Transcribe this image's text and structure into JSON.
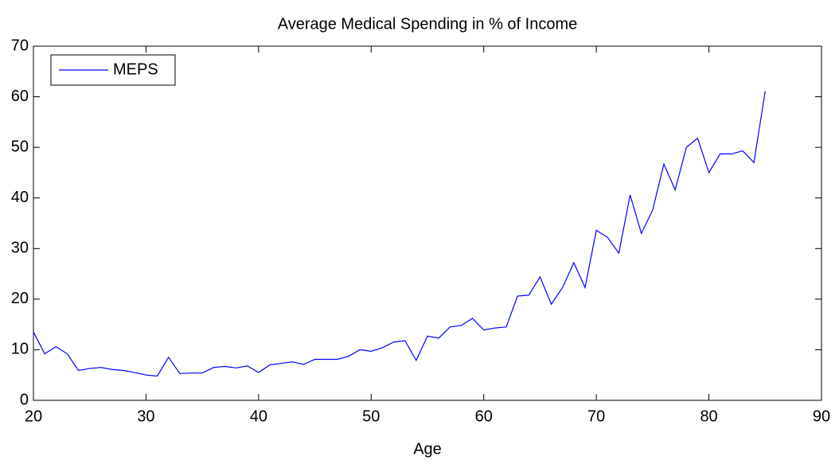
{
  "chart_data": {
    "type": "line",
    "title": "Average Medical Spending in % of Income",
    "x_label": "Age",
    "x": [
      20,
      21,
      22,
      23,
      24,
      25,
      26,
      27,
      28,
      29,
      30,
      31,
      32,
      33,
      34,
      35,
      36,
      37,
      38,
      39,
      40,
      41,
      42,
      43,
      44,
      45,
      46,
      47,
      48,
      49,
      50,
      51,
      52,
      53,
      54,
      55,
      56,
      57,
      58,
      59,
      60,
      61,
      62,
      63,
      64,
      65,
      66,
      67,
      68,
      69,
      70,
      71,
      72,
      73,
      74,
      75,
      76,
      77,
      78,
      79,
      80,
      81,
      82,
      83,
      84,
      85
    ],
    "series": [
      {
        "name": "MEPS",
        "color": "#0000ff",
        "values": [
          13.5,
          9.2,
          10.6,
          9.2,
          5.9,
          6.3,
          6.5,
          6.1,
          5.9,
          5.5,
          5.0,
          4.8,
          8.5,
          5.3,
          5.4,
          5.4,
          6.5,
          6.7,
          6.4,
          6.8,
          5.5,
          7.0,
          7.3,
          7.6,
          7.1,
          8.1,
          8.1,
          8.1,
          8.7,
          10.0,
          9.7,
          10.4,
          11.5,
          11.8,
          7.9,
          12.7,
          12.3,
          14.5,
          14.8,
          16.2,
          13.9,
          14.3,
          14.5,
          20.6,
          20.8,
          24.4,
          19.0,
          22.3,
          27.2,
          22.3,
          33.6,
          32.2,
          29.1,
          40.6,
          33.0,
          37.6,
          46.7,
          41.6,
          50.0,
          51.8,
          45.0,
          48.7,
          48.7,
          49.3,
          47.0,
          61.1
        ]
      }
    ],
    "xlim": [
      20,
      90
    ],
    "xticks": [
      20,
      30,
      40,
      50,
      60,
      70,
      80,
      90
    ],
    "ylim": [
      0,
      70
    ],
    "yticks": [
      0,
      10,
      20,
      30,
      40,
      50,
      60,
      70
    ],
    "grid": false,
    "legend": "upper-left"
  }
}
